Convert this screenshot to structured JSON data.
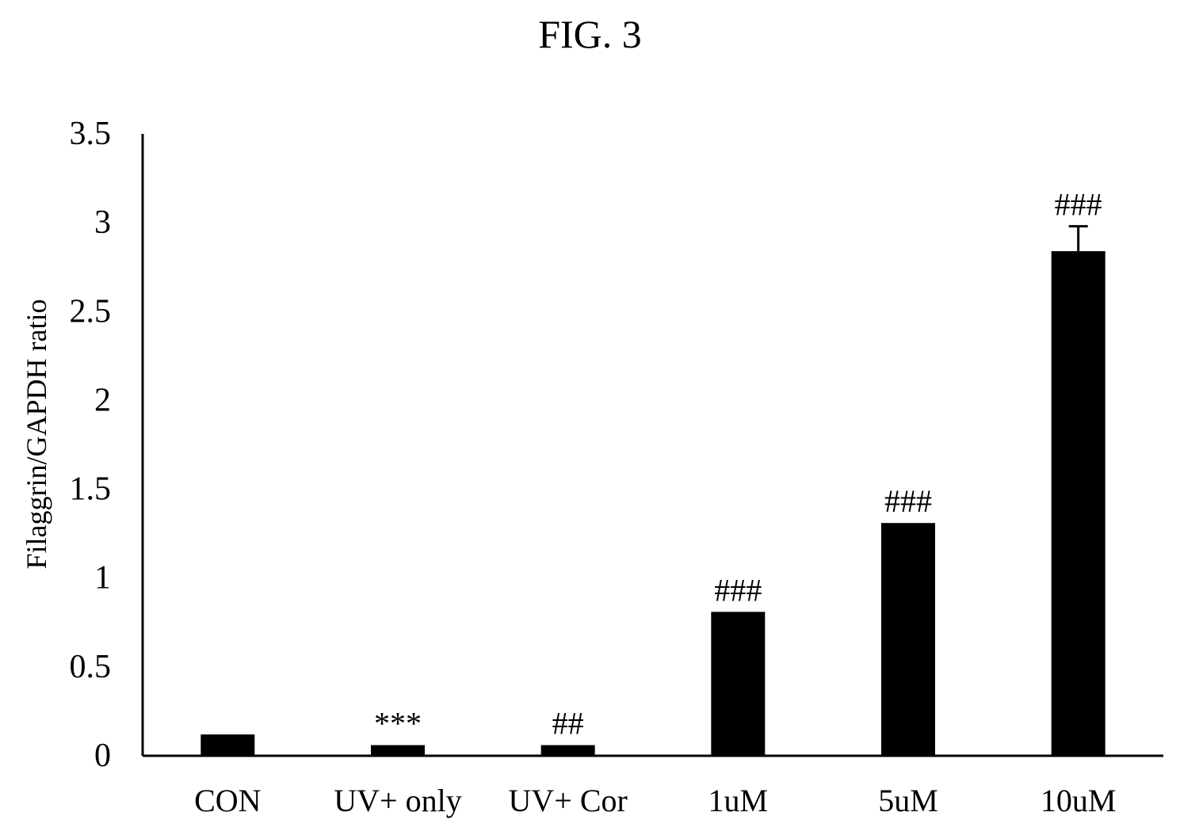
{
  "figure_title": "FIG. 3",
  "chart_data": {
    "type": "bar",
    "title": "",
    "xlabel": "",
    "ylabel": "Filaggrin/GAPDH ratio",
    "categories": [
      "CON",
      "UV+ only",
      "UV+ Cor",
      "1uM",
      "5uM",
      "10uM"
    ],
    "values": [
      0.12,
      0.06,
      0.06,
      0.81,
      1.31,
      2.84
    ],
    "error": [
      0,
      0,
      0,
      0,
      0,
      0.14
    ],
    "annotations": [
      "",
      "***",
      "##",
      "###",
      "###",
      "###"
    ],
    "ylim": [
      0,
      3.5
    ],
    "yticks": [
      0,
      0.5,
      1,
      1.5,
      2,
      2.5,
      3,
      3.5
    ],
    "ytick_labels": [
      "0",
      "0.5",
      "1",
      "1.5",
      "2",
      "2.5",
      "3",
      "3.5"
    ],
    "bar_color": "#000000",
    "grid": false,
    "legend": "none"
  }
}
